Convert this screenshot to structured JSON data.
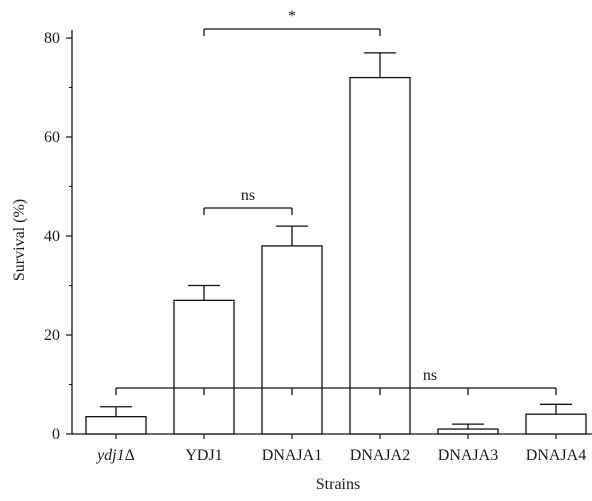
{
  "chart_data": {
    "type": "bar",
    "categories": [
      "ydj1Δ",
      "YDJ1",
      "DNAJA1",
      "DNAJA2",
      "DNAJA3",
      "DNAJA4"
    ],
    "category_italic": [
      true,
      false,
      false,
      false,
      false,
      false
    ],
    "values": [
      3.5,
      27,
      38,
      72,
      1,
      4
    ],
    "errors": [
      2,
      3,
      4,
      5,
      1,
      2
    ],
    "xlabel": "Strains",
    "ylabel": "Survival (%)",
    "ylim": [
      0,
      80
    ],
    "yticks": [
      0,
      20,
      40,
      60,
      80
    ],
    "grid": false,
    "bar_fill": "#ffffff",
    "bar_stroke": "#111111",
    "annotations": [
      {
        "from": 1,
        "to": 3,
        "label": "*"
      },
      {
        "from": 1,
        "to": 2,
        "label": "ns"
      },
      {
        "from": 0,
        "to": 5,
        "label": "ns",
        "ticks": [
          0,
          1,
          2,
          3,
          4,
          5
        ]
      }
    ]
  }
}
